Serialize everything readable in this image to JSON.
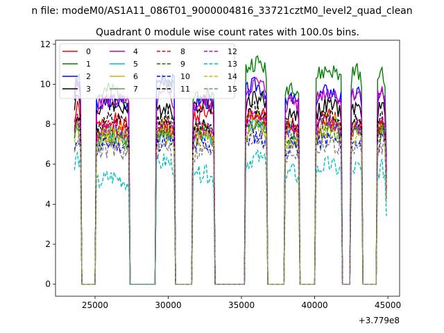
{
  "figure": {
    "suptitle": "n file: modeM0/AS1A11_086T01_9000004816_33721cztM0_level2_quad_clean",
    "offset_text": "+3.779e8"
  },
  "chart_data": {
    "type": "line",
    "title": "Quadrant 0 module wise count rates with 100.0s bins.",
    "xlabel": "",
    "ylabel": "",
    "xlim": [
      22300,
      45800
    ],
    "ylim": [
      -0.6,
      12.2
    ],
    "x_ticks": [
      25000,
      30000,
      35000,
      40000,
      45000
    ],
    "x_tick_labels": [
      "25000",
      "30000",
      "35000",
      "40000",
      "45000"
    ],
    "y_ticks": [
      0,
      2,
      4,
      6,
      8,
      10,
      12
    ],
    "y_tick_labels": [
      "0",
      "2",
      "4",
      "6",
      "8",
      "10",
      "12"
    ],
    "grid": false,
    "legend_position": "top-left",
    "legend_columns": 4,
    "active_intervals": [
      [
        23600,
        24000
      ],
      [
        25100,
        27300
      ],
      [
        29200,
        30400
      ],
      [
        31700,
        33100
      ],
      [
        35300,
        36700
      ],
      [
        38000,
        38900
      ],
      [
        40100,
        41800
      ],
      [
        42500,
        43200
      ],
      [
        44300,
        44800
      ]
    ],
    "series": [
      {
        "name": "0",
        "color": "#ff0000",
        "dash": "solid",
        "values": [
          8.4,
          7.8,
          7.5,
          8.3,
          8.2,
          7.6,
          8.0,
          7.7
        ]
      },
      {
        "name": "1",
        "color": "#008000",
        "dash": "solid",
        "values": [
          10.1,
          9.3,
          9.8,
          9.3,
          10.7,
          9.6,
          10.3,
          10.3
        ]
      },
      {
        "name": "2",
        "color": "#0000ff",
        "dash": "solid",
        "values": [
          9.7,
          8.8,
          10.0,
          8.9,
          9.6,
          8.9,
          9.3,
          9.2
        ]
      },
      {
        "name": "3",
        "color": "#000000",
        "dash": "solid",
        "values": [
          9.0,
          8.7,
          8.6,
          8.7,
          9.0,
          8.3,
          8.6,
          8.5
        ]
      },
      {
        "name": "4",
        "color": "#bf00bf",
        "dash": "solid",
        "values": [
          9.5,
          8.9,
          9.1,
          8.8,
          9.7,
          8.9,
          9.3,
          9.3
        ]
      },
      {
        "name": "5",
        "color": "#00bfbf",
        "dash": "solid",
        "values": [
          7.8,
          7.2,
          7.3,
          7.3,
          7.9,
          7.4,
          7.7,
          7.5
        ]
      },
      {
        "name": "6",
        "color": "#bfbf00",
        "dash": "solid",
        "values": [
          8.1,
          7.4,
          7.6,
          7.5,
          8.1,
          7.4,
          7.8,
          7.6
        ]
      },
      {
        "name": "7",
        "color": "#808080",
        "dash": "solid",
        "values": [
          7.6,
          7.1,
          7.1,
          7.1,
          7.6,
          6.9,
          7.3,
          7.2
        ]
      },
      {
        "name": "8",
        "color": "#ff0000",
        "dash": "dashed",
        "values": [
          8.0,
          7.5,
          7.5,
          7.4,
          8.2,
          7.6,
          7.7,
          7.7
        ]
      },
      {
        "name": "9",
        "color": "#008000",
        "dash": "dashed",
        "values": [
          7.6,
          7.1,
          7.3,
          7.3,
          7.7,
          7.0,
          7.4,
          7.4
        ]
      },
      {
        "name": "10",
        "color": "#0000ff",
        "dash": "dashed",
        "values": [
          7.0,
          6.7,
          6.9,
          6.7,
          7.1,
          6.6,
          6.9,
          6.8
        ]
      },
      {
        "name": "11",
        "color": "#000000",
        "dash": "dashed",
        "values": [
          8.2,
          7.8,
          8.0,
          7.7,
          8.4,
          7.7,
          8.1,
          7.9
        ]
      },
      {
        "name": "12",
        "color": "#bf00bf",
        "dash": "dashed",
        "values": [
          7.9,
          7.5,
          7.6,
          7.6,
          8.0,
          7.4,
          7.8,
          7.6
        ]
      },
      {
        "name": "13",
        "color": "#00bfbf",
        "dash": "dashed",
        "values": [
          6.0,
          5.0,
          5.8,
          5.2,
          6.0,
          5.3,
          5.6,
          5.5
        ]
      },
      {
        "name": "14",
        "color": "#bfbf00",
        "dash": "dashed",
        "values": [
          7.4,
          7.0,
          7.1,
          7.0,
          7.5,
          6.9,
          7.2,
          7.1
        ]
      },
      {
        "name": "15",
        "color": "#808080",
        "dash": "dashed",
        "values": [
          6.9,
          6.4,
          6.6,
          6.4,
          7.0,
          6.3,
          6.7,
          6.6
        ]
      }
    ]
  }
}
